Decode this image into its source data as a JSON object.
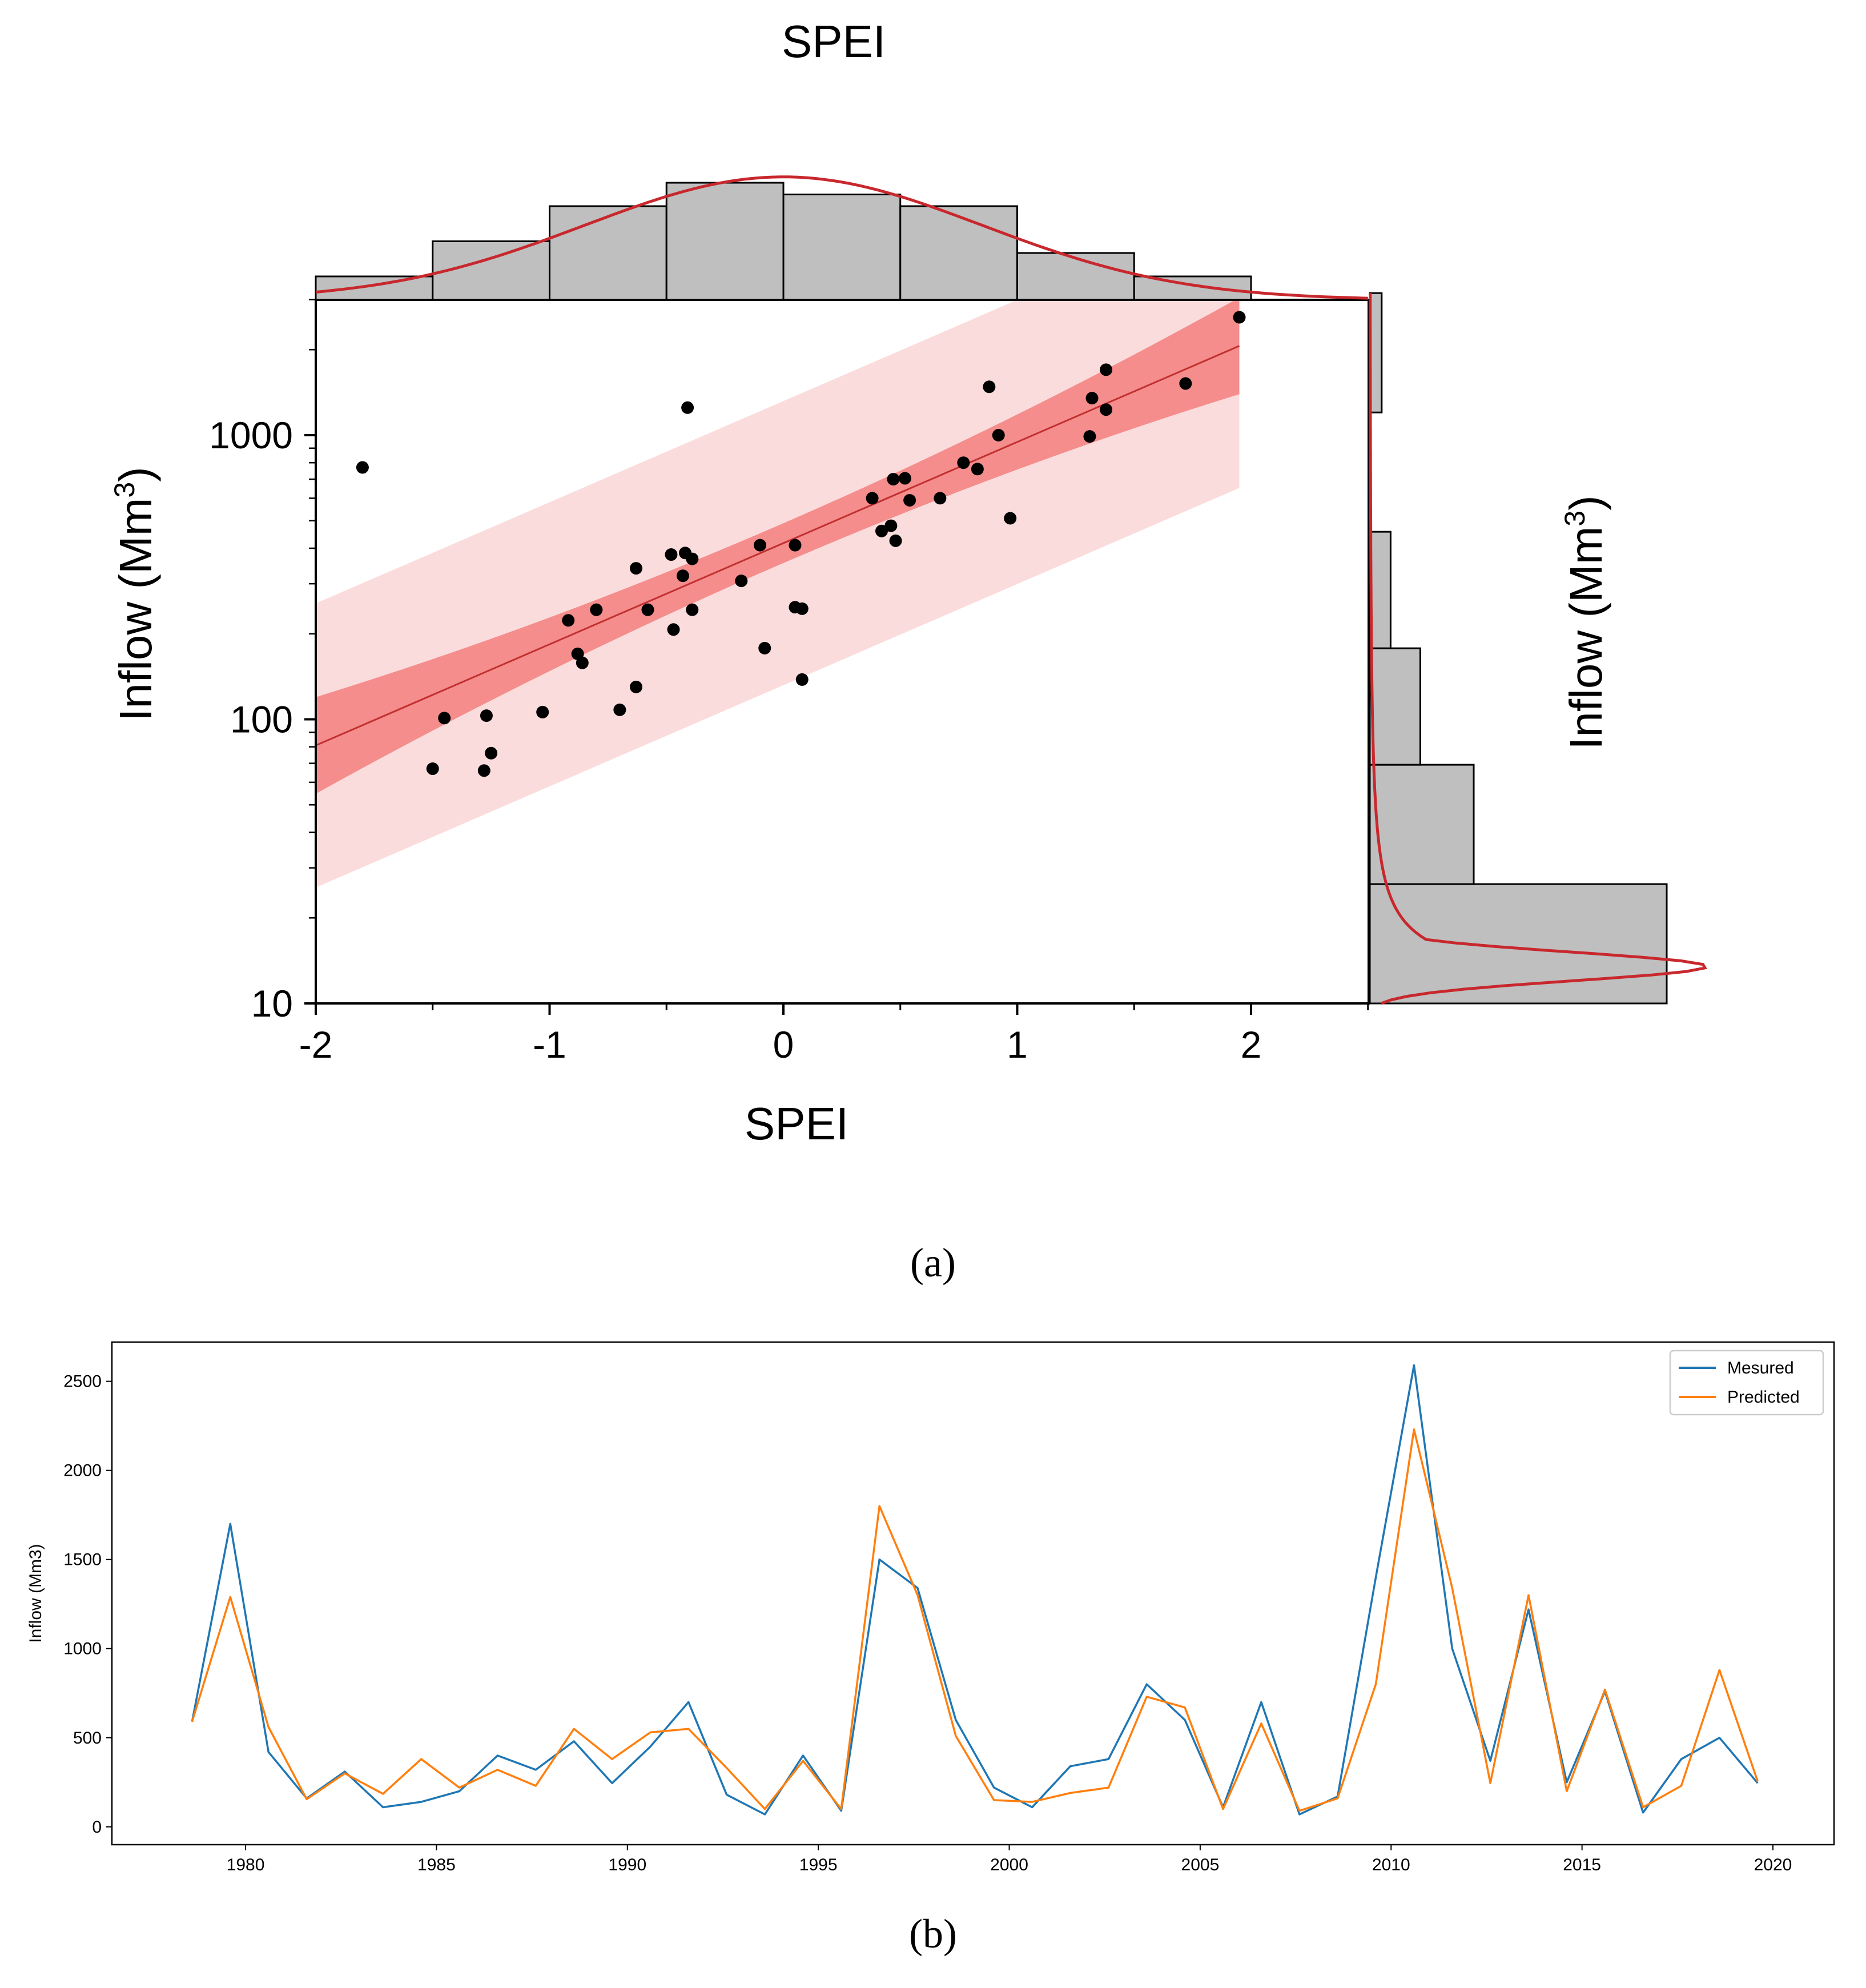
{
  "figure": {
    "caption_a": "(a)",
    "caption_b": "(b)"
  },
  "chart_data": [
    {
      "type": "scatter",
      "title": "SPEI",
      "xlabel": "SPEI",
      "ylabel": "Inflow (Mm3)",
      "right_ylabel": "Inflow (Mm3)",
      "xlim": [
        -2,
        2.5
      ],
      "ylim": [
        10,
        3000
      ],
      "yscale": "log",
      "xticks": [
        "-2",
        "-1",
        "0",
        "1",
        "2"
      ],
      "yticks": [
        "10",
        "100",
        "1000"
      ],
      "points": [
        {
          "x": -1.8,
          "y": 770
        },
        {
          "x": -1.5,
          "y": 67
        },
        {
          "x": -1.45,
          "y": 101
        },
        {
          "x": -1.28,
          "y": 66
        },
        {
          "x": -1.27,
          "y": 103
        },
        {
          "x": -1.25,
          "y": 76
        },
        {
          "x": -1.03,
          "y": 106
        },
        {
          "x": -0.92,
          "y": 223
        },
        {
          "x": -0.88,
          "y": 170
        },
        {
          "x": -0.86,
          "y": 158
        },
        {
          "x": -0.8,
          "y": 243
        },
        {
          "x": -0.7,
          "y": 108
        },
        {
          "x": -0.63,
          "y": 340
        },
        {
          "x": -0.63,
          "y": 130
        },
        {
          "x": -0.58,
          "y": 243
        },
        {
          "x": -0.48,
          "y": 380
        },
        {
          "x": -0.47,
          "y": 207
        },
        {
          "x": -0.43,
          "y": 320
        },
        {
          "x": -0.42,
          "y": 385
        },
        {
          "x": -0.41,
          "y": 1250
        },
        {
          "x": -0.39,
          "y": 367
        },
        {
          "x": -0.39,
          "y": 243
        },
        {
          "x": -0.18,
          "y": 307
        },
        {
          "x": -0.1,
          "y": 410
        },
        {
          "x": -0.08,
          "y": 178
        },
        {
          "x": 0.05,
          "y": 410
        },
        {
          "x": 0.05,
          "y": 248
        },
        {
          "x": 0.08,
          "y": 245
        },
        {
          "x": 0.08,
          "y": 138
        },
        {
          "x": 0.38,
          "y": 600
        },
        {
          "x": 0.42,
          "y": 460
        },
        {
          "x": 0.46,
          "y": 480
        },
        {
          "x": 0.47,
          "y": 700
        },
        {
          "x": 0.48,
          "y": 425
        },
        {
          "x": 0.52,
          "y": 705
        },
        {
          "x": 0.54,
          "y": 590
        },
        {
          "x": 0.67,
          "y": 600
        },
        {
          "x": 0.77,
          "y": 800
        },
        {
          "x": 0.83,
          "y": 760
        },
        {
          "x": 0.88,
          "y": 1480
        },
        {
          "x": 0.92,
          "y": 1000
        },
        {
          "x": 0.97,
          "y": 510
        },
        {
          "x": 1.31,
          "y": 990
        },
        {
          "x": 1.32,
          "y": 1350
        },
        {
          "x": 1.38,
          "y": 1700
        },
        {
          "x": 1.38,
          "y": 1230
        },
        {
          "x": 1.72,
          "y": 1520
        },
        {
          "x": 1.95,
          "y": 2600
        }
      ],
      "regression": {
        "x_range": [
          -2,
          1.95
        ],
        "log10_intercept": 2.62,
        "slope": 0.356
      },
      "confidence_band": {
        "log10_halfwidth_ends": 0.17,
        "log10_halfwidth_center": 0.07
      },
      "prediction_band": {
        "log10_halfwidth": 0.5
      },
      "top_histogram": {
        "bin_edges": [
          -2,
          -1.5,
          -1,
          -0.5,
          0,
          0.5,
          1,
          1.5,
          2
        ],
        "counts": [
          2,
          5,
          8,
          10,
          9,
          8,
          4,
          2
        ]
      },
      "right_histogram": {
        "log10_bin_edges": [
          1,
          1.42,
          1.84,
          2.25,
          2.66,
          3.08,
          3.5
        ],
        "counts": [
          100,
          35,
          17,
          7,
          0,
          4
        ],
        "note": "relative bar lengths as drawn (last bin starts at ~1.42 log10)"
      },
      "top_kde": {
        "mean": 0,
        "sd": 0.85,
        "peak_count": 10.5
      },
      "right_kde": {
        "peak_log10": 1.13,
        "sd_log10": 0.05,
        "peak_length": 122
      }
    },
    {
      "type": "line",
      "title": "",
      "xlabel": "",
      "ylabel": "Inflow (Mm3)",
      "xlim": [
        1976.5,
        2021.6
      ],
      "ylim": [
        -100,
        2720
      ],
      "xticks": [
        1980,
        1985,
        1990,
        1995,
        2000,
        2005,
        2010,
        2015,
        2020
      ],
      "yticks": [
        0,
        500,
        1000,
        1500,
        2000,
        2500
      ],
      "legend_position": "top-right",
      "x": [
        1978.6,
        1979.6,
        1980.6,
        1981.6,
        1982.6,
        1983.6,
        1984.6,
        1985.6,
        1986.6,
        1987.6,
        1988.6,
        1989.6,
        1990.6,
        1991.6,
        1992.6,
        1993.6,
        1994.6,
        1995.6,
        1996.6,
        1997.6,
        1998.6,
        1999.6,
        2000.6,
        2001.6,
        2002.6,
        2003.6,
        2004.6,
        2005.6,
        2006.6,
        2007.6,
        2008.6,
        2009.6,
        2010.6,
        2011.6,
        2012.6,
        2013.6,
        2014.6,
        2015.6,
        2016.6,
        2017.6,
        2018.6,
        2019.6
      ],
      "series": [
        {
          "name": "Mesured",
          "color": "#1f77b4",
          "values": [
            590,
            1700,
            420,
            160,
            310,
            110,
            140,
            200,
            400,
            320,
            480,
            245,
            450,
            700,
            180,
            70,
            400,
            90,
            1500,
            1340,
            600,
            220,
            110,
            340,
            380,
            800,
            600,
            110,
            700,
            70,
            170,
            1400,
            2590,
            1000,
            370,
            1220,
            250,
            760,
            80,
            380,
            500,
            245
          ]
        },
        {
          "name": "Predicted",
          "color": "#ff7f0e",
          "values": [
            590,
            1290,
            560,
            155,
            300,
            185,
            380,
            220,
            320,
            230,
            550,
            380,
            530,
            550,
            330,
            100,
            370,
            100,
            1800,
            1300,
            510,
            150,
            140,
            190,
            220,
            730,
            670,
            100,
            580,
            90,
            160,
            800,
            2230,
            1340,
            245,
            1300,
            200,
            770,
            110,
            230,
            880,
            255
          ]
        }
      ]
    }
  ]
}
